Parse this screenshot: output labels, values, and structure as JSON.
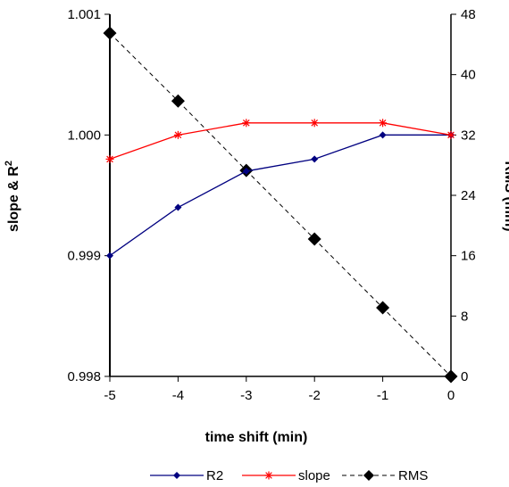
{
  "chart_data": {
    "type": "line",
    "x": [
      -5,
      -4,
      -3,
      -2,
      -1,
      0
    ],
    "xlabel": "time shift  (min)",
    "ylabel": "slope & R",
    "ylabel_sup": "2",
    "y2label": "RMS (mm)",
    "xlim": [
      -5,
      0
    ],
    "ylim": [
      0.998,
      1.001
    ],
    "y2lim": [
      0,
      48
    ],
    "x_ticks": [
      "-5",
      "-4",
      "-3",
      "-2",
      "-1",
      "0"
    ],
    "y_ticks": [
      "0.998",
      "0.999",
      "1.000",
      "1.001"
    ],
    "y2_ticks": [
      "0",
      "8",
      "16",
      "24",
      "32",
      "40",
      "48"
    ],
    "grid": false,
    "legend_position": "bottom",
    "series": [
      {
        "name": "R2",
        "axis": "left",
        "color": "#000080",
        "marker": "diamond",
        "line": "solid",
        "values": [
          0.999,
          0.9994,
          0.9997,
          0.9998,
          1.0,
          1.0
        ]
      },
      {
        "name": "slope",
        "axis": "left",
        "color": "#ff0000",
        "marker": "asterisk",
        "line": "solid",
        "values": [
          0.9998,
          1.0,
          1.0001,
          1.0001,
          1.0001,
          1.0
        ]
      },
      {
        "name": "RMS",
        "axis": "right",
        "color": "#000000",
        "marker": "diamond",
        "line": "dashed",
        "values": [
          45.5,
          36.5,
          27.3,
          18.2,
          9.1,
          0
        ]
      }
    ]
  }
}
